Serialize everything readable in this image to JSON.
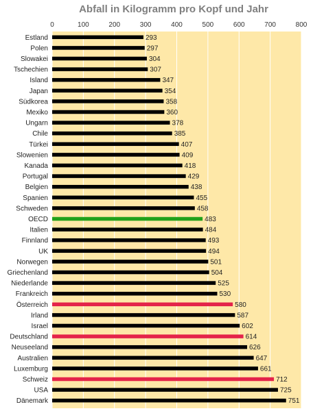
{
  "chart_data": {
    "type": "bar",
    "orientation": "horizontal",
    "title": "Abfall in Kilogramm pro Kopf und Jahr",
    "xlim": [
      0,
      800
    ],
    "xticks": [
      0,
      100,
      200,
      300,
      400,
      500,
      600,
      700,
      800
    ],
    "grid": true,
    "background_color": "#FEE8A8",
    "bar_colors": {
      "default": "#000000",
      "OECD": "#22A11B",
      "highlight": "#E4234A"
    },
    "categories": [
      "Estland",
      "Polen",
      "Slowakei",
      "Tschechien",
      "Island",
      "Japan",
      "Südkorea",
      "Mexiko",
      "Ungarn",
      "Chile",
      "Türkei",
      "Slowenien",
      "Kanada",
      "Portugal",
      "Belgien",
      "Spanien",
      "Schweden",
      "OECD",
      "Italien",
      "Finnland",
      "UK",
      "Norwegen",
      "Griechenland",
      "Niederlande",
      "Frankreich",
      "Österreich",
      "Irland",
      "Israel",
      "Deutschland",
      "Neuseeland",
      "Australien",
      "Luxemburg",
      "Schweiz",
      "USA",
      "Dänemark"
    ],
    "values": [
      293,
      297,
      304,
      307,
      347,
      354,
      358,
      360,
      378,
      385,
      407,
      409,
      418,
      429,
      438,
      455,
      458,
      483,
      484,
      493,
      494,
      501,
      504,
      525,
      530,
      580,
      587,
      602,
      614,
      626,
      647,
      661,
      712,
      725,
      751
    ],
    "highlighted": [
      "Österreich",
      "Deutschland",
      "Schweiz"
    ],
    "reference": "OECD"
  }
}
